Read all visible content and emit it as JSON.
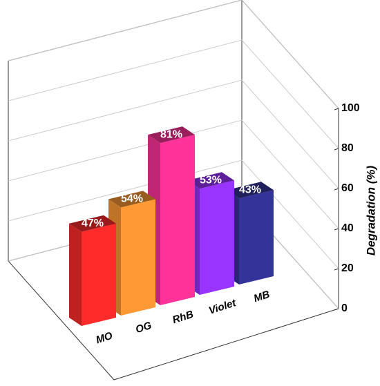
{
  "chart_data": {
    "type": "bar3d",
    "ylabel": "Degradation (%)",
    "categories": [
      "MO",
      "OG",
      "RhB",
      "Violet",
      "MB"
    ],
    "values": [
      47,
      54,
      81,
      53,
      43
    ],
    "value_labels": [
      "47%",
      "54%",
      "81%",
      "53%",
      "43%"
    ],
    "colors": [
      "#ff2b2b",
      "#ff9933",
      "#ff3399",
      "#9933ff",
      "#333399"
    ],
    "ylim": [
      0,
      100
    ],
    "yticks": [
      0,
      20,
      40,
      60,
      80,
      100
    ],
    "grid": true
  }
}
